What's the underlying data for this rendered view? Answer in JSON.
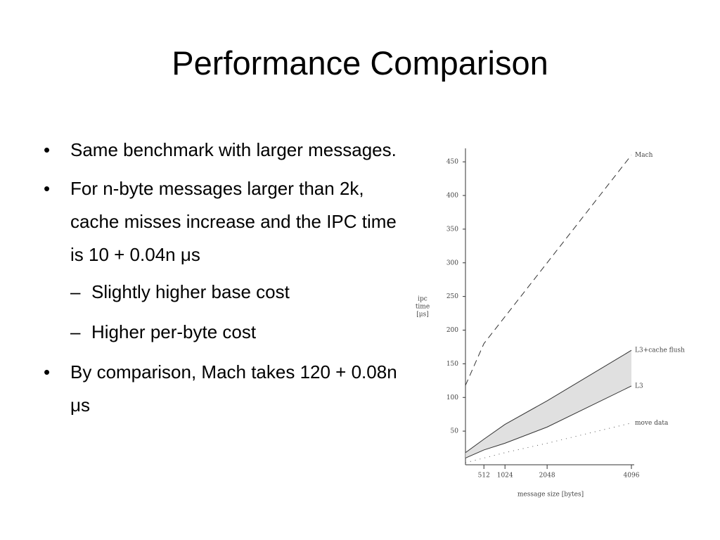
{
  "title": "Performance Comparison",
  "bullets": [
    {
      "text": "Same benchmark with larger messages."
    },
    {
      "text": "For n-byte messages larger than 2k, cache misses increase and the IPC time is 10 + 0.04n μs",
      "sub": [
        "Slightly higher base cost",
        "Higher per-byte cost"
      ]
    },
    {
      "text": "By comparison, Mach takes 120 + 0.08n μs"
    }
  ],
  "chart_data": {
    "type": "line",
    "ylabel": [
      "ipc",
      "time",
      "[μs]"
    ],
    "xlabel": "message size [bytes]",
    "x": [
      64,
      512,
      1024,
      2048,
      4096
    ],
    "xlim": [
      64,
      4096
    ],
    "xticks": [
      512,
      1024,
      2048,
      4096
    ],
    "ylim": [
      0,
      470
    ],
    "yticks": [
      50,
      100,
      150,
      200,
      250,
      300,
      350,
      400,
      450
    ],
    "shade_between": [
      "L3+cache flush",
      "L3"
    ],
    "series": [
      {
        "name": "Mach",
        "color": "#333333",
        "style": "dashed",
        "values": [
          118,
          180,
          220,
          300,
          460
        ]
      },
      {
        "name": "L3+cache flush",
        "color": "#333333",
        "style": "solid",
        "values": [
          18,
          38,
          60,
          95,
          170
        ]
      },
      {
        "name": "L3",
        "color": "#333333",
        "style": "solid",
        "values": [
          10,
          22,
          32,
          56,
          117
        ]
      },
      {
        "name": "move data",
        "color": "#555555",
        "style": "dotted",
        "values": [
          3,
          10,
          18,
          32,
          62
        ]
      }
    ]
  }
}
